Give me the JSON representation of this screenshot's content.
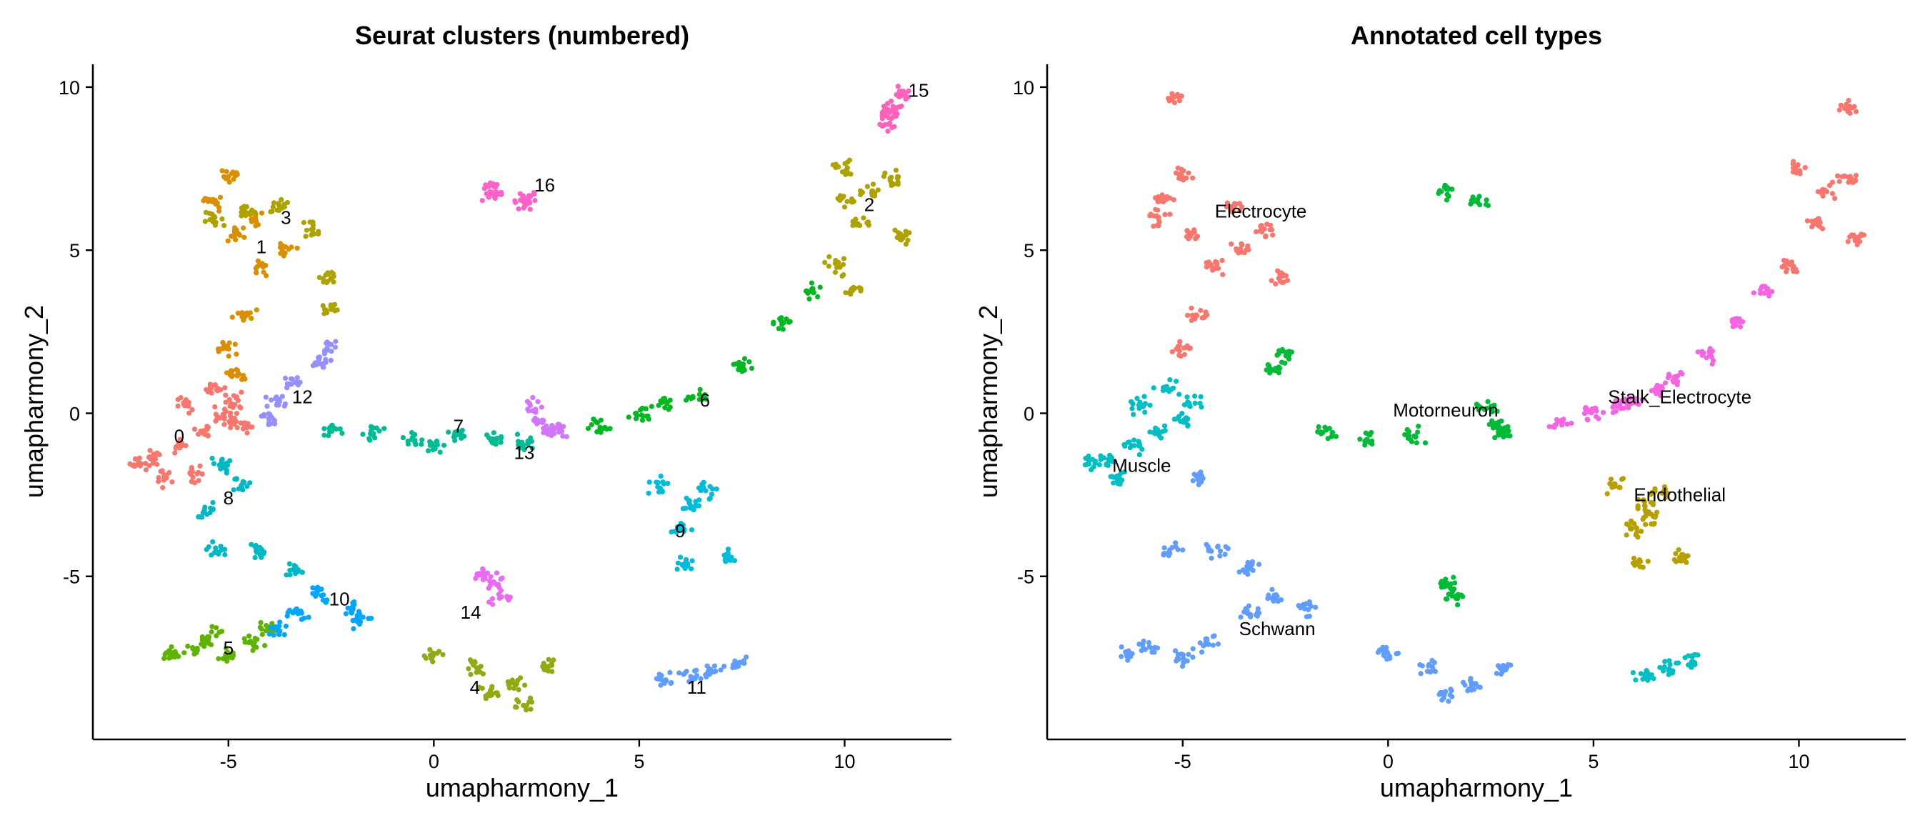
{
  "chart_data": [
    {
      "type": "scatter",
      "title": "Seurat clusters (numbered)",
      "xlabel": "umapharmony_1",
      "ylabel": "umapharmony_2",
      "xlim": [
        -8.3,
        12.6
      ],
      "ylim": [
        -10.0,
        10.7
      ],
      "xticks": [
        -5,
        0,
        5,
        10
      ],
      "yticks": [
        -5,
        0,
        5,
        10
      ],
      "grid": false,
      "legend": "none",
      "series": [
        {
          "id": "0",
          "color": "#F8766D",
          "points": [
            [
              -6.2,
              -1.0
            ],
            [
              -6.8,
              -1.4
            ],
            [
              -5.6,
              -0.6
            ],
            [
              -5.0,
              -0.2
            ],
            [
              -4.8,
              0.4
            ],
            [
              -5.4,
              0.8
            ],
            [
              -6.0,
              0.2
            ],
            [
              -6.6,
              -2.0
            ],
            [
              -7.2,
              -1.5
            ],
            [
              -5.8,
              -1.8
            ],
            [
              -5.2,
              0.0
            ],
            [
              -4.6,
              -0.4
            ]
          ]
        },
        {
          "id": "1",
          "color": "#DB8E00",
          "points": [
            [
              -4.8,
              5.5
            ],
            [
              -5.4,
              6.5
            ],
            [
              -4.2,
              4.5
            ],
            [
              -3.6,
              5.0
            ],
            [
              -5.0,
              7.3
            ],
            [
              -4.6,
              3.0
            ],
            [
              -5.0,
              2.0
            ],
            [
              -4.8,
              1.2
            ],
            [
              -4.4,
              6.0
            ]
          ]
        },
        {
          "id": "2",
          "color": "#AEA200",
          "points": [
            [
              10.6,
              6.8
            ],
            [
              10.0,
              7.5
            ],
            [
              11.2,
              7.2
            ],
            [
              10.4,
              5.8
            ],
            [
              9.8,
              4.5
            ],
            [
              10.2,
              3.8
            ],
            [
              11.4,
              5.4
            ],
            [
              10.0,
              6.5
            ]
          ]
        },
        {
          "id": "3",
          "color": "#AEA200",
          "points": [
            [
              -3.8,
              6.3
            ],
            [
              -3.0,
              5.6
            ],
            [
              -4.6,
              6.2
            ],
            [
              -5.4,
              5.9
            ],
            [
              -2.6,
              4.2
            ],
            [
              -2.5,
              3.2
            ]
          ]
        },
        {
          "id": "4",
          "color": "#8EAB12",
          "points": [
            [
              1.0,
              -7.8
            ],
            [
              0.0,
              -7.4
            ],
            [
              2.0,
              -8.3
            ],
            [
              2.8,
              -7.8
            ],
            [
              1.4,
              -8.6
            ],
            [
              2.2,
              -8.9
            ]
          ]
        },
        {
          "id": "5",
          "color": "#5EB300",
          "points": [
            [
              -5.8,
              -7.2
            ],
            [
              -6.4,
              -7.4
            ],
            [
              -5.0,
              -7.5
            ],
            [
              -4.4,
              -7.0
            ],
            [
              -4.0,
              -6.6
            ],
            [
              -5.4,
              -6.8
            ]
          ]
        },
        {
          "id": "6",
          "color": "#00B81F",
          "points": [
            [
              6.4,
              0.5
            ],
            [
              5.0,
              0.0
            ],
            [
              4.0,
              -0.4
            ],
            [
              7.5,
              1.5
            ],
            [
              8.5,
              2.8
            ],
            [
              9.2,
              3.8
            ],
            [
              5.6,
              0.3
            ]
          ]
        },
        {
          "id": "7",
          "color": "#00BB93",
          "points": [
            [
              0.6,
              -0.7
            ],
            [
              -0.5,
              -0.8
            ],
            [
              -1.5,
              -0.6
            ],
            [
              -2.5,
              -0.5
            ],
            [
              0.0,
              -1.0
            ],
            [
              1.5,
              -0.8
            ],
            [
              2.2,
              -0.9
            ]
          ]
        },
        {
          "id": "8",
          "color": "#00B8C3",
          "points": [
            [
              -5.1,
              -1.6
            ],
            [
              -4.7,
              -2.2
            ],
            [
              -5.5,
              -3.0
            ],
            [
              -5.3,
              -4.2
            ],
            [
              -4.2,
              -4.2
            ],
            [
              -3.4,
              -4.8
            ]
          ]
        },
        {
          "id": "9",
          "color": "#00BBDA",
          "points": [
            [
              6.3,
              -2.8
            ],
            [
              6.6,
              -2.4
            ],
            [
              6.0,
              -3.6
            ],
            [
              6.1,
              -4.6
            ],
            [
              5.5,
              -2.2
            ],
            [
              7.2,
              -4.4
            ]
          ]
        },
        {
          "id": "10",
          "color": "#00A5FF",
          "points": [
            [
              -2.8,
              -5.6
            ],
            [
              -3.3,
              -6.1
            ],
            [
              -2.0,
              -6.0
            ],
            [
              -1.8,
              -6.4
            ],
            [
              -3.8,
              -6.6
            ]
          ]
        },
        {
          "id": "11",
          "color": "#619CFF",
          "points": [
            [
              6.8,
              -7.8
            ],
            [
              6.2,
              -8.0
            ],
            [
              7.4,
              -7.6
            ],
            [
              5.6,
              -8.1
            ]
          ]
        },
        {
          "id": "12",
          "color": "#9590FF",
          "points": [
            [
              -2.8,
              1.6
            ],
            [
              -2.5,
              2.0
            ],
            [
              -3.4,
              0.9
            ],
            [
              -3.8,
              0.4
            ],
            [
              -4.0,
              -0.2
            ]
          ]
        },
        {
          "id": "13",
          "color": "#D376FF",
          "points": [
            [
              2.6,
              -0.3
            ],
            [
              2.8,
              -0.6
            ],
            [
              2.4,
              0.2
            ],
            [
              3.0,
              -0.5
            ]
          ]
        },
        {
          "id": "14",
          "color": "#EA6AF1",
          "points": [
            [
              1.4,
              -5.2
            ],
            [
              1.6,
              -5.6
            ],
            [
              1.2,
              -4.9
            ]
          ]
        },
        {
          "id": "15",
          "color": "#FF62BC",
          "points": [
            [
              11.2,
              9.4
            ],
            [
              11.0,
              8.8
            ],
            [
              11.4,
              9.8
            ],
            [
              11.1,
              9.1
            ]
          ]
        },
        {
          "id": "16",
          "color": "#FF61C9",
          "points": [
            [
              1.4,
              6.8
            ],
            [
              1.5,
              6.8
            ],
            [
              2.2,
              6.5
            ],
            [
              2.3,
              6.6
            ]
          ]
        }
      ],
      "labels": [
        {
          "text": "0",
          "x": -6.2,
          "y": -0.7
        },
        {
          "text": "1",
          "x": -4.2,
          "y": 5.1
        },
        {
          "text": "2",
          "x": 10.6,
          "y": 6.4
        },
        {
          "text": "3",
          "x": -3.6,
          "y": 6.0
        },
        {
          "text": "4",
          "x": 1.0,
          "y": -8.4
        },
        {
          "text": "5",
          "x": -5.0,
          "y": -7.2
        },
        {
          "text": "6",
          "x": 6.6,
          "y": 0.4
        },
        {
          "text": "7",
          "x": 0.6,
          "y": -0.4
        },
        {
          "text": "8",
          "x": -5.0,
          "y": -2.6
        },
        {
          "text": "9",
          "x": 6.0,
          "y": -3.6
        },
        {
          "text": "10",
          "x": -2.3,
          "y": -5.7
        },
        {
          "text": "11",
          "x": 6.4,
          "y": -8.4
        },
        {
          "text": "12",
          "x": -3.2,
          "y": 0.5
        },
        {
          "text": "13",
          "x": 2.2,
          "y": -1.2
        },
        {
          "text": "14",
          "x": 0.9,
          "y": -6.1
        },
        {
          "text": "15",
          "x": 11.8,
          "y": 9.9
        },
        {
          "text": "16",
          "x": 2.7,
          "y": 7.0
        }
      ]
    },
    {
      "type": "scatter",
      "title": "Annotated cell types",
      "xlabel": "umapharmony_1",
      "ylabel": "umapharmony_2",
      "xlim": [
        -8.3,
        12.6
      ],
      "ylim": [
        -10.0,
        10.7
      ],
      "xticks": [
        -5,
        0,
        5,
        10
      ],
      "yticks": [
        -5,
        0,
        5,
        10
      ],
      "grid": false,
      "legend": "none",
      "series": [
        {
          "id": "Electrocyte",
          "color": "#F8766D",
          "points": [
            [
              -5.6,
              6.0
            ],
            [
              -4.8,
              5.5
            ],
            [
              -5.4,
              6.5
            ],
            [
              -4.2,
              4.5
            ],
            [
              -3.6,
              5.0
            ],
            [
              -5.0,
              7.3
            ],
            [
              -4.6,
              3.0
            ],
            [
              -5.0,
              2.0
            ],
            [
              -3.8,
              6.3
            ],
            [
              -3.0,
              5.6
            ],
            [
              -2.6,
              4.2
            ],
            [
              10.6,
              6.8
            ],
            [
              10.0,
              7.5
            ],
            [
              11.2,
              7.2
            ],
            [
              10.4,
              5.8
            ],
            [
              9.8,
              4.5
            ],
            [
              11.4,
              5.4
            ],
            [
              11.2,
              9.4
            ],
            [
              -5.2,
              9.7
            ]
          ]
        },
        {
          "id": "Endothelial",
          "color": "#B79F00",
          "points": [
            [
              6.3,
              -2.8
            ],
            [
              6.6,
              -2.4
            ],
            [
              6.0,
              -3.6
            ],
            [
              6.1,
              -4.6
            ],
            [
              5.5,
              -2.2
            ],
            [
              7.2,
              -4.4
            ],
            [
              6.4,
              -3.2
            ]
          ]
        },
        {
          "id": "Motorneuron",
          "color": "#00BA38",
          "points": [
            [
              0.6,
              -0.7
            ],
            [
              -0.5,
              -0.8
            ],
            [
              -1.5,
              -0.6
            ],
            [
              2.6,
              -0.3
            ],
            [
              2.8,
              -0.6
            ],
            [
              2.4,
              0.2
            ],
            [
              -2.5,
              1.8
            ],
            [
              -2.8,
              1.4
            ],
            [
              1.4,
              6.8
            ],
            [
              2.2,
              6.5
            ],
            [
              1.4,
              -5.2
            ],
            [
              1.6,
              -5.6
            ]
          ]
        },
        {
          "id": "Muscle",
          "color": "#00BFC4",
          "points": [
            [
              -6.2,
              -1.0
            ],
            [
              -6.8,
              -1.4
            ],
            [
              -5.6,
              -0.6
            ],
            [
              -5.0,
              -0.2
            ],
            [
              -4.8,
              0.4
            ],
            [
              -5.4,
              0.8
            ],
            [
              -6.0,
              0.2
            ],
            [
              -6.6,
              -2.0
            ],
            [
              -7.2,
              -1.5
            ],
            [
              6.8,
              -7.8
            ],
            [
              6.2,
              -8.0
            ],
            [
              7.4,
              -7.6
            ]
          ]
        },
        {
          "id": "Schwann",
          "color": "#619CFF",
          "points": [
            [
              -5.8,
              -7.2
            ],
            [
              -6.4,
              -7.4
            ],
            [
              -5.0,
              -7.5
            ],
            [
              -4.4,
              -7.0
            ],
            [
              -2.8,
              -5.6
            ],
            [
              -3.3,
              -6.1
            ],
            [
              -2.0,
              -6.0
            ],
            [
              1.0,
              -7.8
            ],
            [
              0.0,
              -7.4
            ],
            [
              2.0,
              -8.3
            ],
            [
              2.8,
              -7.8
            ],
            [
              1.4,
              -8.6
            ],
            [
              -5.3,
              -4.2
            ],
            [
              -4.2,
              -4.2
            ],
            [
              -3.4,
              -4.8
            ],
            [
              -4.6,
              -2.0
            ]
          ]
        },
        {
          "id": "Stalk_Electrocyte",
          "color": "#F564E3",
          "points": [
            [
              4.2,
              -0.3
            ],
            [
              5.0,
              0.0
            ],
            [
              6.0,
              0.4
            ],
            [
              7.0,
              1.0
            ],
            [
              7.8,
              1.8
            ],
            [
              8.5,
              2.8
            ],
            [
              9.2,
              3.8
            ],
            [
              5.6,
              0.2
            ],
            [
              6.6,
              0.7
            ]
          ]
        }
      ],
      "labels": [
        {
          "text": "Electrocyte",
          "x": -3.1,
          "y": 6.2
        },
        {
          "text": "Motorneuron",
          "x": 1.4,
          "y": 0.1
        },
        {
          "text": "Stalk_Electrocyte",
          "x": 7.1,
          "y": 0.5
        },
        {
          "text": "Muscle",
          "x": -6.0,
          "y": -1.6
        },
        {
          "text": "Endothelial",
          "x": 7.1,
          "y": -2.5
        },
        {
          "text": "Schwann",
          "x": -2.7,
          "y": -6.6
        }
      ]
    }
  ]
}
